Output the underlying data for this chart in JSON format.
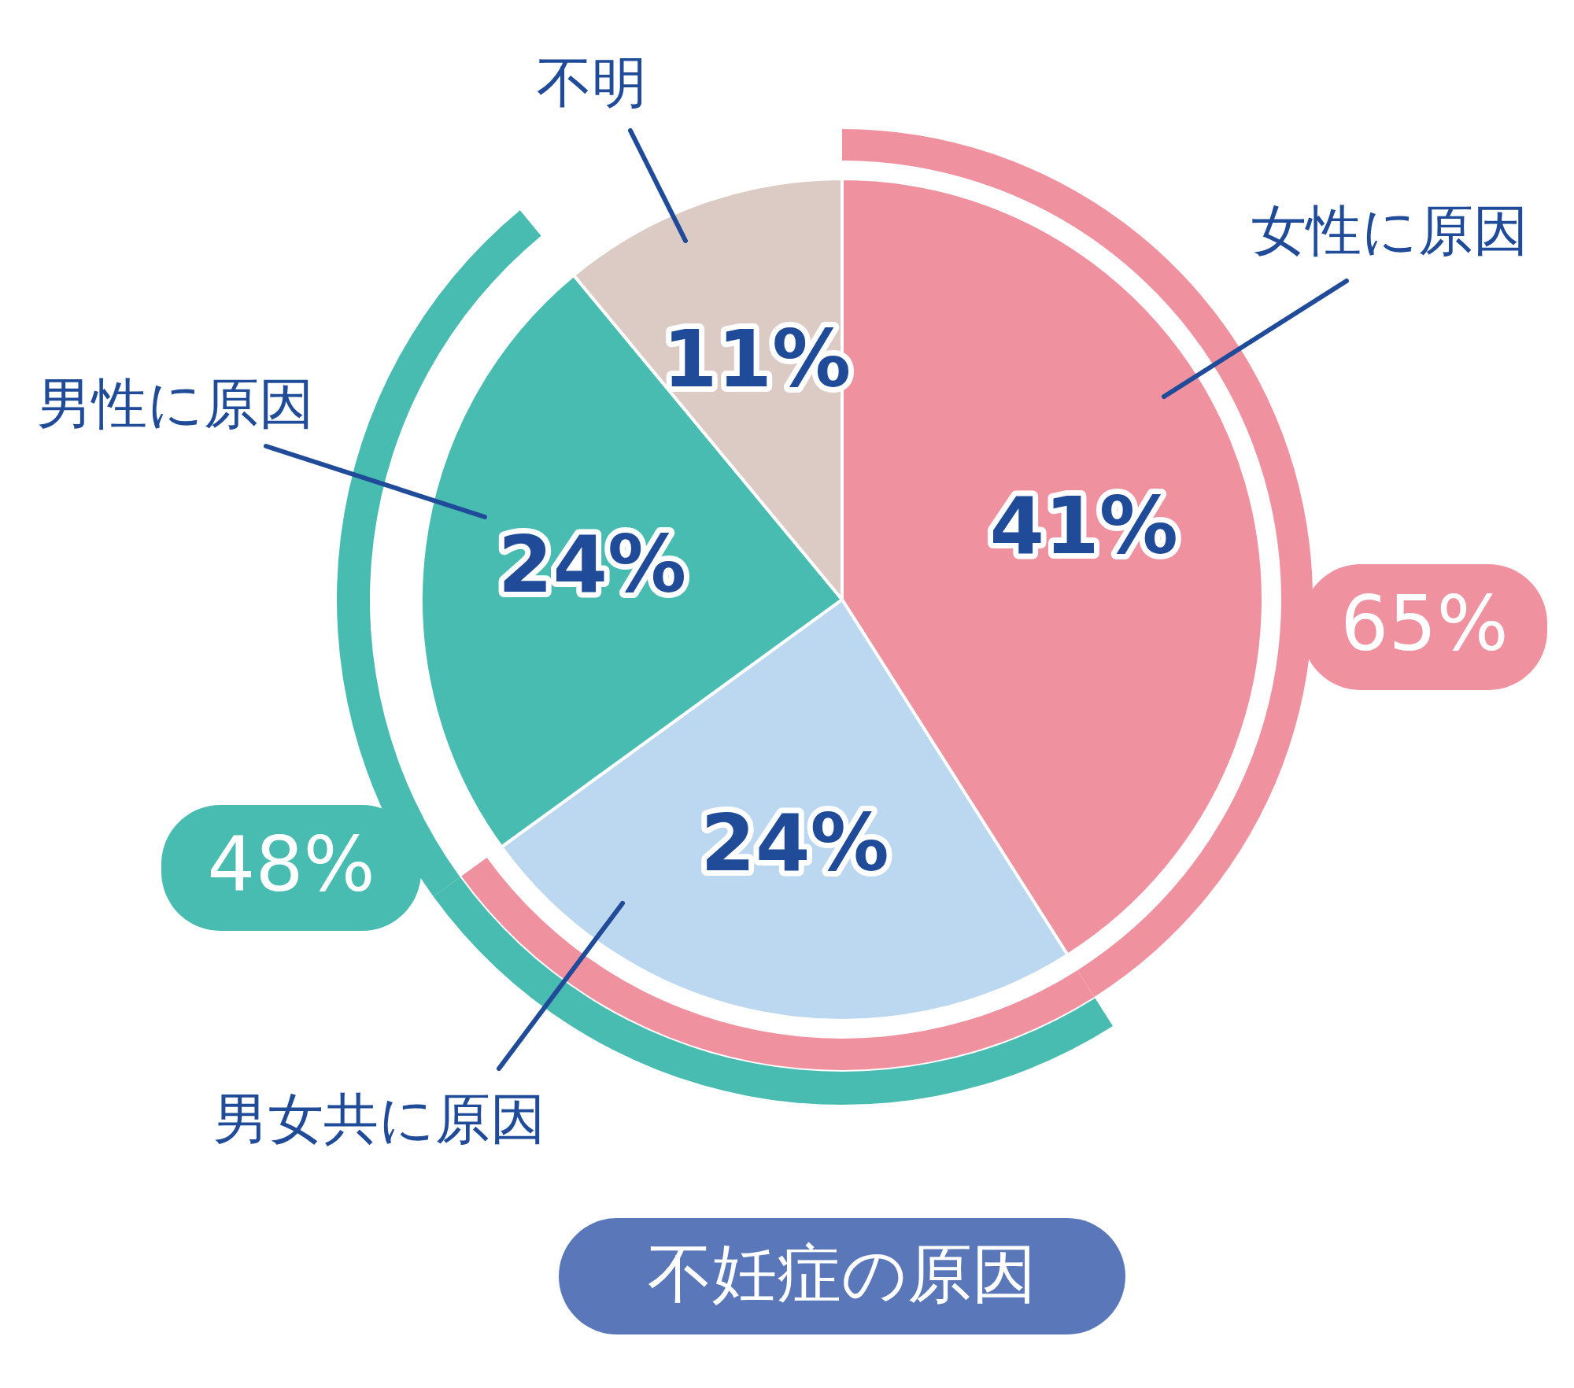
{
  "chart_data": {
    "type": "pie",
    "title": "不妊症の原因",
    "categories": [
      "女性に原因",
      "男女共に原因",
      "男性に原因",
      "不明"
    ],
    "values": [
      41,
      24,
      24,
      11
    ],
    "colors": [
      "#ef919f",
      "#bcd7f0",
      "#48bcb0",
      "#dbcbc4"
    ],
    "value_labels": [
      "41%",
      "24%",
      "24%",
      "11%"
    ],
    "annotations": [
      "65%",
      "48%"
    ]
  }
}
